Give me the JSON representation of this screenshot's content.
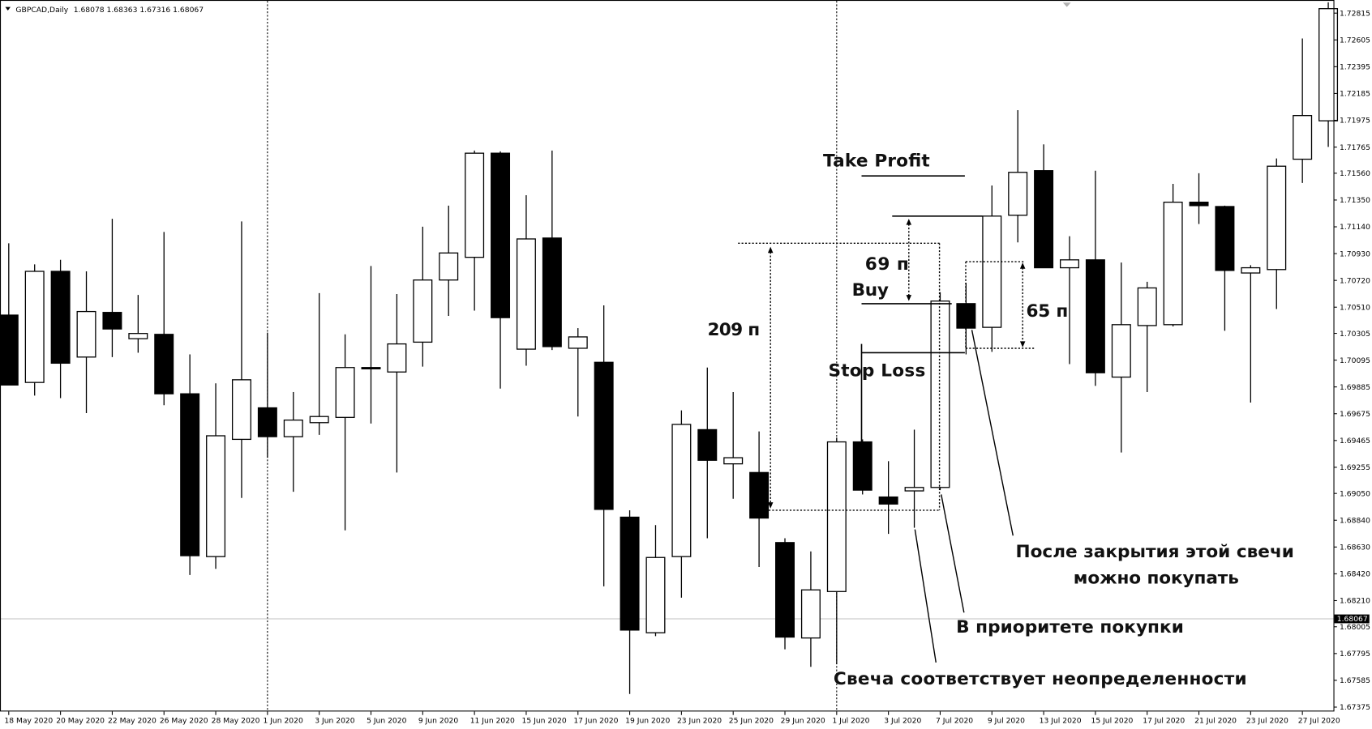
{
  "header": {
    "symbol": "GBPCAD,Daily",
    "ohlc": "1.68078 1.68363 1.67316 1.68067"
  },
  "colors": {
    "bull_fill": "#ffffff",
    "bear_fill": "#000000",
    "outline": "#000000",
    "current_price_line": "#c0c0c0",
    "current_price_bg": "#000000"
  },
  "chart_data": {
    "type": "candlestick",
    "symbol": "GBPCAD",
    "timeframe": "Daily",
    "ylim": [
      1.673,
      1.729
    ],
    "current_price": "1.68067",
    "price_ticks": [
      "1.72815",
      "1.72605",
      "1.72395",
      "1.72185",
      "1.71975",
      "1.71765",
      "1.71560",
      "1.71350",
      "1.71140",
      "1.70930",
      "1.70720",
      "1.70510",
      "1.70305",
      "1.70095",
      "1.69885",
      "1.69675",
      "1.69465",
      "1.69255",
      "1.69050",
      "1.68840",
      "1.68630",
      "1.68420",
      "1.68210",
      "1.68005",
      "1.67795",
      "1.67585",
      "1.67375"
    ],
    "date_labels": [
      "18 May 2020",
      "20 May 2020",
      "22 May 2020",
      "26 May 2020",
      "28 May 2020",
      "1 Jun 2020",
      "3 Jun 2020",
      "5 Jun 2020",
      "9 Jun 2020",
      "11 Jun 2020",
      "15 Jun 2020",
      "17 Jun 2020",
      "19 Jun 2020",
      "23 Jun 2020",
      "25 Jun 2020",
      "29 Jun 2020",
      "1 Jul 2020",
      "3 Jul 2020",
      "7 Jul 2020",
      "9 Jul 2020",
      "13 Jul 2020",
      "15 Jul 2020",
      "17 Jul 2020",
      "21 Jul 2020",
      "23 Jul 2020",
      "27 Jul 2020"
    ],
    "period_separators": [
      "1 Jun 2020",
      "1 Jul 2020"
    ],
    "candles": [
      [
        1.70448,
        1.71011,
        1.699,
        1.699
      ],
      [
        1.6992,
        1.70846,
        1.69817,
        1.70791
      ],
      [
        1.70791,
        1.70881,
        1.69797,
        1.70071
      ],
      [
        1.70119,
        1.70791,
        1.6968,
        1.70476
      ],
      [
        1.70469,
        1.71203,
        1.70119,
        1.70339
      ],
      [
        1.70263,
        1.70606,
        1.70153,
        1.70304
      ],
      [
        1.70297,
        1.711,
        1.69742,
        1.69831
      ],
      [
        1.69831,
        1.7014,
        1.68411,
        1.68562
      ],
      [
        1.68555,
        1.69913,
        1.68459,
        1.69502
      ],
      [
        1.69474,
        1.71182,
        1.69015,
        1.69941
      ],
      [
        1.69721,
        1.70311,
        1.6933,
        1.69495
      ],
      [
        1.69495,
        1.69845,
        1.69063,
        1.69625
      ],
      [
        1.69605,
        1.7062,
        1.69509,
        1.69653
      ],
      [
        1.69646,
        1.70297,
        1.68761,
        1.70037
      ],
      [
        1.70037,
        1.70833,
        1.69598,
        1.7003
      ],
      [
        1.70002,
        1.70613,
        1.69214,
        1.70222
      ],
      [
        1.70236,
        1.71141,
        1.70044,
        1.70723
      ],
      [
        1.70723,
        1.71306,
        1.70442,
        1.70935
      ],
      [
        1.70901,
        1.71738,
        1.70483,
        1.71717
      ],
      [
        1.71717,
        1.71731,
        1.69872,
        1.70428
      ],
      [
        1.70181,
        1.71388,
        1.70051,
        1.71045
      ],
      [
        1.71052,
        1.71738,
        1.70174,
        1.70201
      ],
      [
        1.70188,
        1.70346,
        1.69653,
        1.70277
      ],
      [
        1.70078,
        1.70524,
        1.68322,
        1.68925
      ],
      [
        1.68864,
        1.68918,
        1.67478,
        1.67979
      ],
      [
        1.67958,
        1.68802,
        1.67931,
        1.68548
      ],
      [
        1.68555,
        1.69701,
        1.68233,
        1.69591
      ],
      [
        1.6955,
        1.70037,
        1.68699,
        1.6931
      ],
      [
        1.69282,
        1.69845,
        1.69008,
        1.6933
      ],
      [
        1.69214,
        1.69536,
        1.68473,
        1.68857
      ],
      [
        1.68665,
        1.68699,
        1.67828,
        1.67924
      ],
      [
        1.67917,
        1.68596,
        1.67691,
        1.68294
      ],
      [
        1.68281,
        1.69488,
        1.67711,
        1.69454
      ],
      [
        1.69454,
        1.69474,
        1.69042,
        1.69076
      ],
      [
        1.69022,
        1.69303,
        1.68733,
        1.68967
      ],
      [
        1.6907,
        1.6955,
        1.68781,
        1.69097
      ],
      [
        1.69097,
        1.70627,
        1.69076,
        1.70558
      ],
      [
        1.70538,
        1.70702,
        1.7014,
        1.70346
      ],
      [
        1.70352,
        1.71464,
        1.7016,
        1.71224
      ],
      [
        1.71231,
        1.72054,
        1.71018,
        1.71567
      ],
      [
        1.7158,
        1.71786,
        1.70819,
        1.70819
      ],
      [
        1.70819,
        1.71066,
        1.70064,
        1.70881
      ],
      [
        1.70881,
        1.7158,
        1.69893,
        1.69996
      ],
      [
        1.69962,
        1.7086,
        1.69371,
        1.70373
      ],
      [
        1.70366,
        1.70709,
        1.69845,
        1.70661
      ],
      [
        1.70373,
        1.71477,
        1.70359,
        1.71333
      ],
      [
        1.71333,
        1.7156,
        1.71162,
        1.71306
      ],
      [
        1.71299,
        1.71306,
        1.70325,
        1.70798
      ],
      [
        1.70778,
        1.70839,
        1.69762,
        1.70819
      ],
      [
        1.70805,
        1.71676,
        1.70496,
        1.71615
      ],
      [
        1.7167,
        1.72616,
        1.71484,
        1.72012
      ],
      [
        1.71971,
        1.729,
        1.71766,
        1.7285
      ]
    ],
    "candle_format": [
      "open",
      "high",
      "low",
      "close"
    ]
  },
  "annotations": {
    "take_profit": "Take Profit",
    "buy": "Buy",
    "stop_loss": "Stop Loss",
    "range_209": "209 п",
    "range_69": "69 п",
    "range_65": "65 п",
    "note_after_close_1": "После закрытия этой свечи",
    "note_after_close_2": "можно покупать",
    "note_priority": "В приоритете покупки",
    "note_uncertainty": "Свеча соответствует неопределенности"
  }
}
